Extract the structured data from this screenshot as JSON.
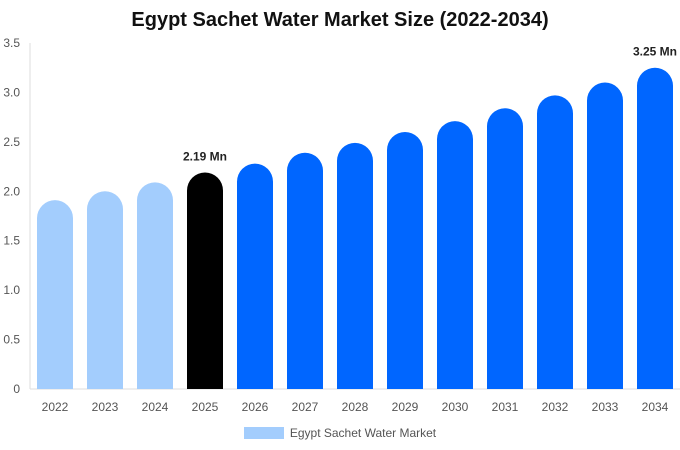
{
  "chart_data": {
    "type": "bar",
    "title": "Egypt Sachet Water Market Size (2022-2034)",
    "categories": [
      "2022",
      "2023",
      "2024",
      "2025",
      "2026",
      "2027",
      "2028",
      "2029",
      "2030",
      "2031",
      "2032",
      "2033",
      "2034"
    ],
    "series": [
      {
        "name": "Egypt Sachet Water Market",
        "values": [
          1.91,
          2.0,
          2.09,
          2.19,
          2.28,
          2.39,
          2.49,
          2.6,
          2.71,
          2.84,
          2.97,
          3.1,
          3.25
        ]
      }
    ],
    "ylim": [
      0,
      3.5
    ],
    "yticks": [
      "0",
      "0.5",
      "1.0",
      "1.5",
      "2.0",
      "2.5",
      "3.0",
      "3.5"
    ],
    "grid": false,
    "legend_placement": "bottom",
    "annotations": [
      {
        "category": "2025",
        "text": "2.19 Mn"
      },
      {
        "category": "2034",
        "text": "3.25 Mn"
      }
    ],
    "colors": {
      "historical": "#a3cdfd",
      "current": "#000000",
      "forecast": "#0066ff",
      "axis": "#dddddd"
    }
  }
}
